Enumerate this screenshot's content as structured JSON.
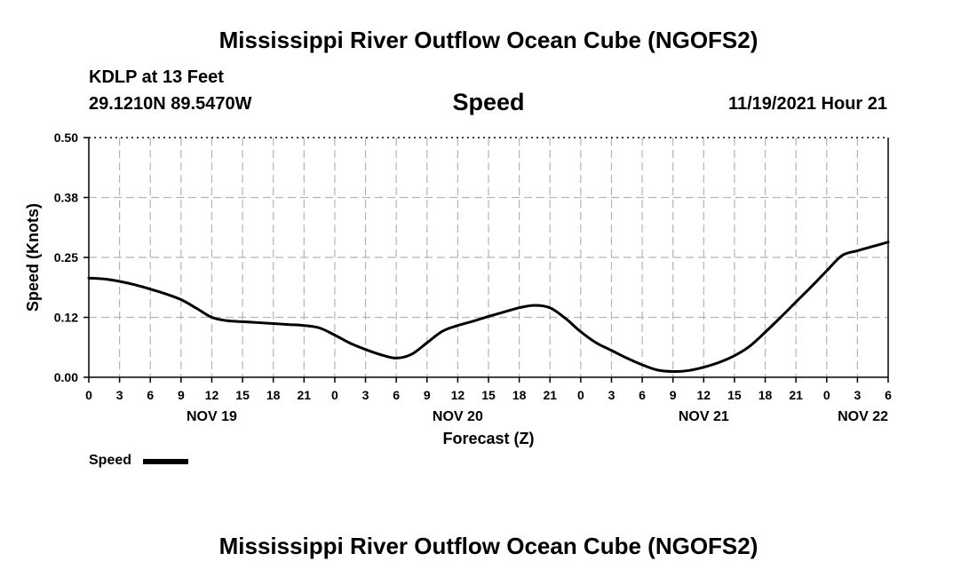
{
  "header": {
    "title": "Mississippi River Outflow Ocean Cube (NGOFS2)",
    "station": "KDLP at 13 Feet",
    "coords": "29.1210N  89.5470W",
    "parameter": "Speed",
    "datetime": "11/19/2021 Hour 21"
  },
  "footer": {
    "title": "Mississippi River Outflow Ocean Cube (NGOFS2)"
  },
  "legend": {
    "label": "Speed",
    "color": "#000000"
  },
  "chart_data": {
    "type": "line",
    "title": "Speed",
    "xlabel": "Forecast (Z)",
    "ylabel": "Speed (Knots)",
    "xlim": [
      0,
      78
    ],
    "ylim": [
      0,
      0.5
    ],
    "grid": true,
    "yticks": [
      0,
      0.125,
      0.25,
      0.375,
      0.5
    ],
    "ytick_labels": [
      "0.00",
      "0.12",
      "0.25",
      "0.38",
      "0.50"
    ],
    "xticks": [
      0,
      3,
      6,
      9,
      12,
      15,
      18,
      21,
      24,
      27,
      30,
      33,
      36,
      39,
      42,
      45,
      48,
      51,
      54,
      57,
      60,
      63,
      66,
      69,
      72,
      75,
      78
    ],
    "xtick_labels": [
      "0",
      "3",
      "6",
      "9",
      "12",
      "15",
      "18",
      "21",
      "0",
      "3",
      "6",
      "9",
      "12",
      "15",
      "18",
      "21",
      "0",
      "3",
      "6",
      "9",
      "12",
      "15",
      "18",
      "21",
      "0",
      "3",
      "6"
    ],
    "date_labels": [
      {
        "x": 12,
        "label": "NOV 19"
      },
      {
        "x": 36,
        "label": "NOV 20"
      },
      {
        "x": 60,
        "label": "NOV 21"
      },
      {
        "x": 75,
        "label": "NOV 22"
      }
    ],
    "series": [
      {
        "name": "Speed",
        "color": "#000000",
        "x": [
          0,
          1.5,
          3,
          4.5,
          6,
          7.5,
          9,
          10.5,
          12,
          13.5,
          15,
          16.5,
          18,
          19.5,
          21,
          22.5,
          24,
          25.5,
          27,
          28.5,
          30,
          31.5,
          33,
          34.5,
          36,
          37.5,
          39,
          40.5,
          42,
          43.5,
          45,
          46.5,
          48,
          49.5,
          51,
          52.5,
          54,
          55.5,
          57,
          58.5,
          60,
          61.5,
          63,
          64.5,
          66,
          67.5,
          69,
          70.5,
          72,
          73.5,
          75,
          76.5,
          78
        ],
        "values": [
          0.207,
          0.205,
          0.2,
          0.193,
          0.184,
          0.174,
          0.162,
          0.144,
          0.125,
          0.118,
          0.116,
          0.114,
          0.112,
          0.11,
          0.108,
          0.103,
          0.088,
          0.071,
          0.058,
          0.047,
          0.04,
          0.048,
          0.072,
          0.096,
          0.108,
          0.117,
          0.127,
          0.136,
          0.145,
          0.15,
          0.145,
          0.123,
          0.095,
          0.072,
          0.056,
          0.04,
          0.026,
          0.015,
          0.012,
          0.014,
          0.021,
          0.031,
          0.045,
          0.065,
          0.094,
          0.125,
          0.157,
          0.189,
          0.222,
          0.254,
          0.264,
          0.273,
          0.282
        ]
      }
    ]
  }
}
